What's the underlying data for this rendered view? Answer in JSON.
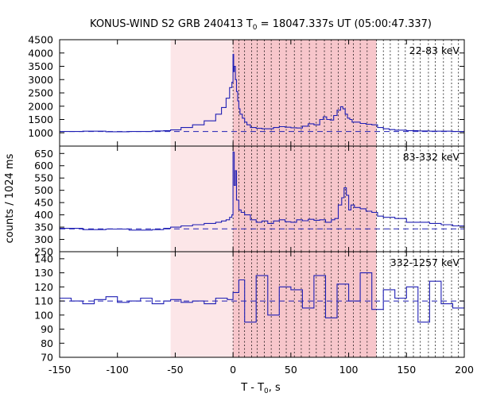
{
  "chart_data": {
    "type": "line",
    "title_main": "KONUS-WIND S2 GRB 240413 T",
    "title_sub": "0",
    "title_rest": " = 18047.337s UT (05:00:47.337)",
    "xlabel_main": "T - T",
    "xlabel_sub": "0",
    "xlabel_rest": ", s",
    "ylabel": "counts / 1024 ms",
    "xlim": [
      -150,
      200
    ],
    "x_ticks": [
      -150,
      -100,
      -50,
      0,
      50,
      100,
      150,
      200
    ],
    "background_interval": [
      -54,
      0
    ],
    "source_interval": [
      0,
      124
    ],
    "spectral_interval_bounds": [
      0,
      5,
      10,
      16,
      21,
      27,
      33,
      40,
      46,
      53,
      59,
      66,
      72,
      79,
      85,
      91,
      97,
      104,
      110,
      116,
      124,
      130,
      136,
      143,
      149,
      156,
      162,
      169,
      175,
      182,
      189,
      195
    ],
    "colors": {
      "line": "#1f1fb4",
      "shade_source": "#f7c6cb",
      "shade_background": "#fce6e8"
    },
    "panels": [
      {
        "name": "22-83 keV",
        "ylim": [
          500,
          4500
        ],
        "y_ticks": [
          1000,
          1500,
          2000,
          2500,
          3000,
          3500,
          4000,
          4500
        ],
        "background_level": 1050,
        "x": [
          -150,
          -130,
          -110,
          -90,
          -70,
          -60,
          -54,
          -45,
          -35,
          -25,
          -15,
          -10,
          -6,
          -3,
          -1,
          0,
          0.5,
          1,
          2,
          3,
          4,
          5,
          6,
          8,
          10,
          12,
          15,
          20,
          25,
          30,
          35,
          40,
          45,
          50,
          55,
          60,
          65,
          70,
          75,
          78,
          81,
          84,
          87,
          90,
          93,
          95,
          97,
          99,
          101,
          103,
          105,
          110,
          115,
          120,
          125,
          130,
          135,
          140,
          150,
          160,
          170,
          180,
          190,
          200
        ],
        "values": [
          1050,
          1060,
          1040,
          1050,
          1070,
          1080,
          1110,
          1200,
          1300,
          1450,
          1700,
          1950,
          2300,
          2700,
          2900,
          3950,
          3300,
          3500,
          3000,
          2550,
          2200,
          1900,
          1700,
          1550,
          1400,
          1300,
          1200,
          1170,
          1150,
          1150,
          1200,
          1230,
          1210,
          1190,
          1180,
          1250,
          1340,
          1300,
          1500,
          1600,
          1500,
          1480,
          1650,
          1850,
          1980,
          1900,
          1700,
          1550,
          1500,
          1400,
          1400,
          1350,
          1320,
          1300,
          1200,
          1150,
          1120,
          1100,
          1080,
          1070,
          1060,
          1060,
          1050,
          1040
        ]
      },
      {
        "name": "83-332 keV",
        "ylim": [
          250,
          680
        ],
        "y_ticks": [
          250,
          300,
          350,
          400,
          450,
          500,
          550,
          600,
          650
        ],
        "background_level": 343,
        "x": [
          -150,
          -130,
          -110,
          -90,
          -70,
          -60,
          -54,
          -45,
          -35,
          -25,
          -15,
          -10,
          -6,
          -3,
          -1,
          0,
          1,
          2,
          3,
          5,
          7,
          10,
          15,
          20,
          25,
          30,
          35,
          40,
          45,
          50,
          55,
          60,
          65,
          70,
          75,
          80,
          85,
          88,
          91,
          94,
          96,
          98,
          100,
          102,
          105,
          110,
          115,
          120,
          125,
          130,
          140,
          150,
          160,
          170,
          180,
          190,
          200
        ],
        "values": [
          345,
          340,
          342,
          338,
          340,
          345,
          350,
          355,
          360,
          365,
          370,
          375,
          380,
          390,
          400,
          655,
          520,
          580,
          460,
          420,
          410,
          400,
          380,
          370,
          375,
          365,
          375,
          380,
          372,
          370,
          380,
          376,
          382,
          378,
          380,
          370,
          380,
          385,
          440,
          470,
          510,
          480,
          420,
          440,
          430,
          425,
          415,
          410,
          395,
          390,
          385,
          370,
          370,
          365,
          360,
          355,
          345
        ]
      },
      {
        "name": "332-1257 keV",
        "ylim": [
          70,
          145
        ],
        "y_ticks": [
          70,
          80,
          90,
          100,
          110,
          120,
          130,
          140
        ],
        "background_level": 110,
        "x": [
          -150,
          -140,
          -130,
          -120,
          -110,
          -100,
          -90,
          -80,
          -70,
          -60,
          -54,
          -45,
          -35,
          -25,
          -15,
          -5,
          0,
          5,
          10,
          20,
          30,
          40,
          50,
          60,
          70,
          80,
          90,
          100,
          110,
          120,
          130,
          140,
          150,
          160,
          170,
          180,
          190,
          200
        ],
        "values": [
          112,
          110,
          108,
          111,
          113,
          109,
          110,
          112,
          108,
          110,
          111,
          109,
          110,
          108,
          112,
          111,
          116,
          125,
          95,
          128,
          100,
          120,
          118,
          105,
          128,
          98,
          122,
          110,
          130,
          104,
          118,
          112,
          120,
          95,
          124,
          108,
          105,
          110
        ]
      }
    ]
  }
}
